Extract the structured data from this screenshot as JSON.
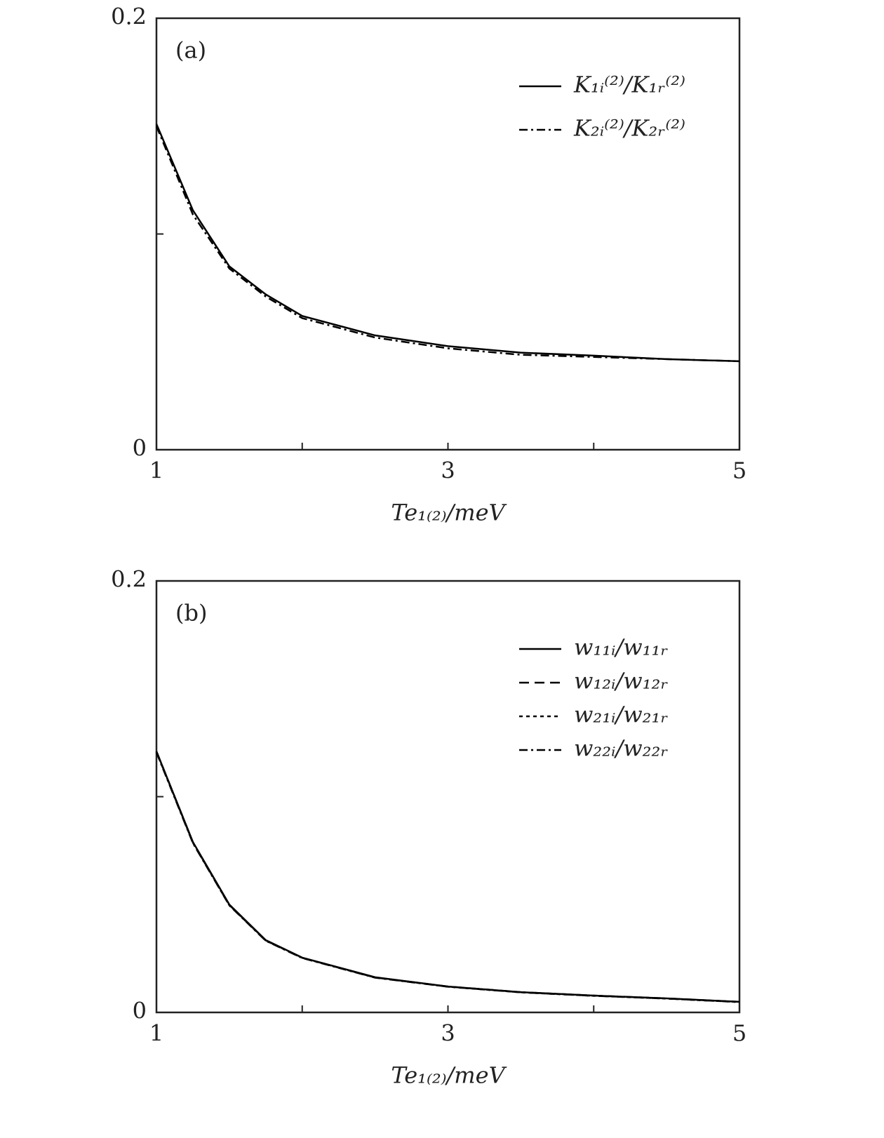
{
  "chart_data": [
    {
      "type": "line",
      "panel_label": "(a)",
      "xlabel": "Te₁₍₂₎/meV",
      "x": [
        1,
        1.25,
        1.5,
        1.75,
        2,
        2.5,
        3,
        3.5,
        4,
        4.5,
        5
      ],
      "series": [
        {
          "name": "K₁ᵢ⁽²⁾/K₁ᵣ⁽²⁾",
          "color": "#000000",
          "style": "solid",
          "values": [
            0.151,
            0.111,
            0.085,
            0.072,
            0.062,
            0.053,
            0.048,
            0.045,
            0.0436,
            0.042,
            0.041
          ]
        },
        {
          "name": "K₂ᵢ⁽²⁾/K₂ᵣ⁽²⁾",
          "color": "#000000",
          "style": "dashdot",
          "values": [
            0.15,
            0.109,
            0.084,
            0.071,
            0.061,
            0.052,
            0.047,
            0.044,
            0.043,
            0.042,
            0.041
          ]
        }
      ],
      "xlim": [
        1,
        5
      ],
      "xticks": [
        1,
        3,
        5
      ],
      "xminorticks": [
        2,
        4
      ],
      "ylim": [
        0,
        0.2
      ],
      "yticks": [
        0,
        0.2
      ],
      "yminorticks": [
        0.1
      ],
      "legend": "upper right"
    },
    {
      "type": "line",
      "panel_label": "(b)",
      "xlabel": "Te₁₍₂₎/meV",
      "x": [
        1,
        1.25,
        1.5,
        1.75,
        2,
        2.5,
        3,
        3.5,
        4,
        4.5,
        5
      ],
      "series": [
        {
          "name": "w₁₁ᵢ/w₁₁ᵣ",
          "color": "#000000",
          "style": "solid",
          "values": [
            0.121,
            0.079,
            0.05,
            0.0335,
            0.0254,
            0.0163,
            0.012,
            0.0094,
            0.0078,
            0.0065,
            0.0049
          ]
        },
        {
          "name": "w₁₂ᵢ/w₁₂ᵣ",
          "color": "#000000",
          "style": "dashed",
          "values": [
            0.121,
            0.0788,
            0.0498,
            0.0334,
            0.0253,
            0.0162,
            0.012,
            0.0094,
            0.0078,
            0.0065,
            0.0049
          ]
        },
        {
          "name": "w₂₁ᵢ/w₂₁ᵣ",
          "color": "#000000",
          "style": "dotted",
          "values": [
            0.1208,
            0.0787,
            0.0497,
            0.0333,
            0.0253,
            0.0162,
            0.0119,
            0.0093,
            0.0077,
            0.0064,
            0.0048
          ]
        },
        {
          "name": "w₂₂ᵢ/w₂₂ᵣ",
          "color": "#000000",
          "style": "dashdot",
          "values": [
            0.1205,
            0.0785,
            0.0496,
            0.0332,
            0.0252,
            0.0161,
            0.0119,
            0.0093,
            0.0077,
            0.0064,
            0.0048
          ]
        }
      ],
      "xlim": [
        1,
        5
      ],
      "xticks": [
        1,
        3,
        5
      ],
      "xminorticks": [
        2,
        4
      ],
      "ylim": [
        0,
        0.2
      ],
      "yticks": [
        0,
        0.2
      ],
      "yminorticks": [
        0.1
      ],
      "legend": "upper right"
    }
  ]
}
